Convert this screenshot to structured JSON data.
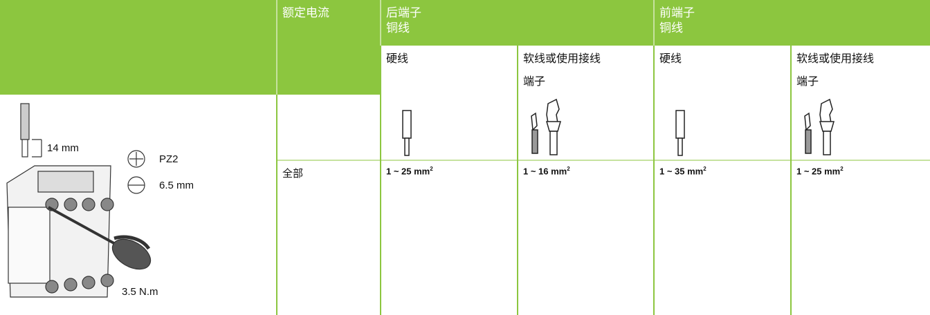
{
  "illustration": {
    "strip_length": "14 mm",
    "pozidriv": "PZ2",
    "flat_blade": "6.5 mm",
    "torque": "3.5 N.m"
  },
  "table": {
    "header": {
      "rated_current": "额定电流",
      "groups": [
        {
          "label": [
            "后端子",
            "铜线"
          ],
          "sub": [
            [
              "硬线"
            ],
            [
              "软线或使用接线",
              "端子"
            ]
          ]
        },
        {
          "label": [
            "前端子",
            "铜线"
          ],
          "sub": [
            [
              "硬线"
            ],
            [
              "软线或使用接线",
              "端子"
            ]
          ]
        }
      ]
    },
    "rows": [
      {
        "label": "全部",
        "values": [
          [
            "1 ~ 25 mm",
            "2"
          ],
          [
            "1 ~ 16 mm",
            "2"
          ],
          [
            "1 ~ 35 mm",
            "2"
          ],
          [
            "1 ~ 25 mm",
            "2"
          ]
        ]
      }
    ]
  }
}
